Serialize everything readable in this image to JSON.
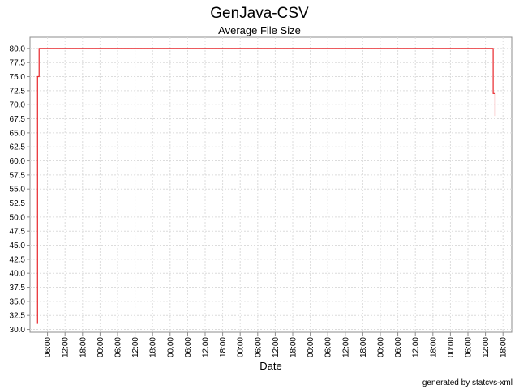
{
  "chart_data": {
    "type": "line",
    "title": "GenJava-CSV",
    "subtitle": "Average File Size",
    "xlabel": "Date",
    "ylabel": "",
    "ylim": [
      29.5,
      82
    ],
    "yticks": [
      "30.0",
      "32.5",
      "35.0",
      "37.5",
      "40.0",
      "42.5",
      "45.0",
      "47.5",
      "50.0",
      "52.5",
      "55.0",
      "57.5",
      "60.0",
      "62.5",
      "65.0",
      "67.5",
      "70.0",
      "72.5",
      "75.0",
      "77.5",
      "80.0"
    ],
    "xlim": [
      0,
      27.5
    ],
    "xticks": [
      {
        "t": 1,
        "label": "06:00"
      },
      {
        "t": 2,
        "label": "12:00"
      },
      {
        "t": 3,
        "label": "18:00"
      },
      {
        "t": 4,
        "label": "00:00"
      },
      {
        "t": 5,
        "label": "06:00"
      },
      {
        "t": 6,
        "label": "12:00"
      },
      {
        "t": 7,
        "label": "18:00"
      },
      {
        "t": 8,
        "label": "00:00"
      },
      {
        "t": 9,
        "label": "06:00"
      },
      {
        "t": 10,
        "label": "12:00"
      },
      {
        "t": 11,
        "label": "18:00"
      },
      {
        "t": 12,
        "label": "00:00"
      },
      {
        "t": 13,
        "label": "06:00"
      },
      {
        "t": 14,
        "label": "12:00"
      },
      {
        "t": 15,
        "label": "18:00"
      },
      {
        "t": 16,
        "label": "00:00"
      },
      {
        "t": 17,
        "label": "06:00"
      },
      {
        "t": 18,
        "label": "12:00"
      },
      {
        "t": 19,
        "label": "18:00"
      },
      {
        "t": 20,
        "label": "00:00"
      },
      {
        "t": 21,
        "label": "06:00"
      },
      {
        "t": 22,
        "label": "12:00"
      },
      {
        "t": 23,
        "label": "18:00"
      },
      {
        "t": 24,
        "label": "00:00"
      },
      {
        "t": 25,
        "label": "06:00"
      },
      {
        "t": 26,
        "label": "12:00"
      },
      {
        "t": 27,
        "label": "18:00"
      }
    ],
    "series": [
      {
        "color": "#e8262b",
        "points": [
          {
            "t": 0.43,
            "y": 31.0
          },
          {
            "t": 0.43,
            "y": 75.0
          },
          {
            "t": 0.52,
            "y": 75.0
          },
          {
            "t": 0.52,
            "y": 80.0
          },
          {
            "t": 26.44,
            "y": 80.0
          },
          {
            "t": 26.44,
            "y": 72.0
          },
          {
            "t": 26.55,
            "y": 72.0
          },
          {
            "t": 26.55,
            "y": 68.0
          }
        ]
      }
    ],
    "grid": true,
    "legend": "none"
  },
  "footer": {
    "credit": "generated by statcvs-xml"
  }
}
